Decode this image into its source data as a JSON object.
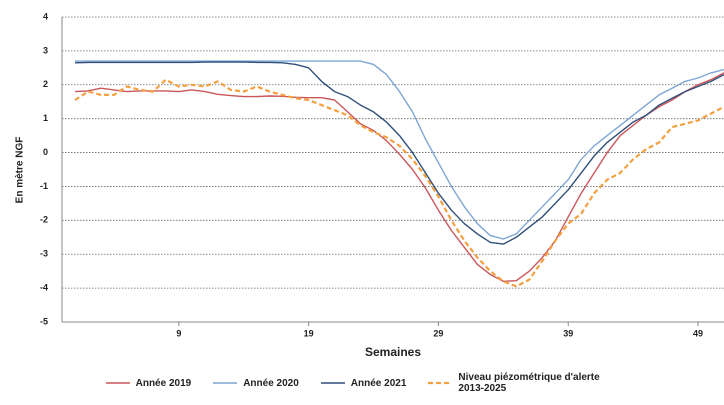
{
  "chart_data": {
    "type": "line",
    "xlabel": "Semaines",
    "ylabel": "En mètre NGF",
    "x": [
      1,
      2,
      3,
      4,
      5,
      6,
      7,
      8,
      9,
      10,
      11,
      12,
      13,
      14,
      15,
      16,
      17,
      18,
      19,
      20,
      21,
      22,
      23,
      24,
      25,
      26,
      27,
      28,
      29,
      30,
      31,
      32,
      33,
      34,
      35,
      36,
      37,
      38,
      39,
      40,
      41,
      42,
      43,
      44,
      45,
      46,
      47,
      48,
      49,
      50,
      51
    ],
    "xlim": [
      0,
      51
    ],
    "xticks": [
      9,
      19,
      29,
      39,
      49
    ],
    "ylim": [
      -5,
      4
    ],
    "yticks": [
      -5,
      -4,
      -3,
      -2,
      -1,
      0,
      1,
      2,
      3,
      4
    ],
    "grid": true,
    "legend": "bottom",
    "series": [
      {
        "name": "Année 2019",
        "color": "#c9575a",
        "dashed": false,
        "values": [
          1.8,
          1.82,
          1.9,
          1.85,
          1.8,
          1.82,
          1.82,
          1.82,
          1.8,
          1.85,
          1.8,
          1.72,
          1.68,
          1.65,
          1.65,
          1.67,
          1.66,
          1.63,
          1.62,
          1.62,
          1.55,
          1.2,
          0.85,
          0.65,
          0.35,
          -0.05,
          -0.5,
          -1.05,
          -1.7,
          -2.3,
          -2.8,
          -3.3,
          -3.6,
          -3.8,
          -3.78,
          -3.5,
          -3.1,
          -2.6,
          -1.9,
          -1.2,
          -0.6,
          0.0,
          0.5,
          0.8,
          1.1,
          1.35,
          1.55,
          1.8,
          2.0,
          2.15,
          2.35
        ]
      },
      {
        "name": "Année 2020",
        "color": "#7ea6d4",
        "dashed": false,
        "values": [
          2.7,
          2.7,
          2.7,
          2.7,
          2.7,
          2.7,
          2.7,
          2.7,
          2.7,
          2.7,
          2.7,
          2.7,
          2.7,
          2.7,
          2.7,
          2.7,
          2.7,
          2.7,
          2.7,
          2.7,
          2.7,
          2.7,
          2.7,
          2.6,
          2.3,
          1.8,
          1.2,
          0.4,
          -0.3,
          -1.0,
          -1.6,
          -2.1,
          -2.45,
          -2.55,
          -2.4,
          -2.0,
          -1.6,
          -1.2,
          -0.8,
          -0.2,
          0.2,
          0.5,
          0.8,
          1.1,
          1.4,
          1.7,
          1.9,
          2.1,
          2.2,
          2.35,
          2.45
        ]
      },
      {
        "name": "Année 2021",
        "color": "#2f4f7a",
        "dashed": false,
        "values": [
          2.65,
          2.66,
          2.66,
          2.66,
          2.66,
          2.66,
          2.66,
          2.66,
          2.66,
          2.66,
          2.67,
          2.67,
          2.67,
          2.67,
          2.66,
          2.66,
          2.65,
          2.6,
          2.5,
          2.1,
          1.8,
          1.65,
          1.4,
          1.2,
          0.9,
          0.5,
          0.0,
          -0.6,
          -1.2,
          -1.7,
          -2.1,
          -2.4,
          -2.65,
          -2.7,
          -2.5,
          -2.2,
          -1.9,
          -1.5,
          -1.1,
          -0.6,
          -0.1,
          0.3,
          0.6,
          0.9,
          1.1,
          1.4,
          1.6,
          1.8,
          1.95,
          2.1,
          2.3
        ]
      },
      {
        "name": "Niveau piézométrique d'alerte 2013-2025",
        "color": "#f4a040",
        "dashed": true,
        "values": [
          1.55,
          1.8,
          1.7,
          1.7,
          1.95,
          1.85,
          1.8,
          2.15,
          1.95,
          2.0,
          1.95,
          2.1,
          1.85,
          1.8,
          1.95,
          1.8,
          1.7,
          1.6,
          1.55,
          1.4,
          1.25,
          1.1,
          0.8,
          0.6,
          0.45,
          0.2,
          -0.2,
          -0.7,
          -1.3,
          -2.0,
          -2.6,
          -3.1,
          -3.5,
          -3.8,
          -3.95,
          -3.75,
          -3.2,
          -2.6,
          -2.1,
          -1.8,
          -1.2,
          -0.8,
          -0.6,
          -0.2,
          0.1,
          0.3,
          0.75,
          0.85,
          0.95,
          1.15,
          1.35
        ]
      }
    ]
  }
}
